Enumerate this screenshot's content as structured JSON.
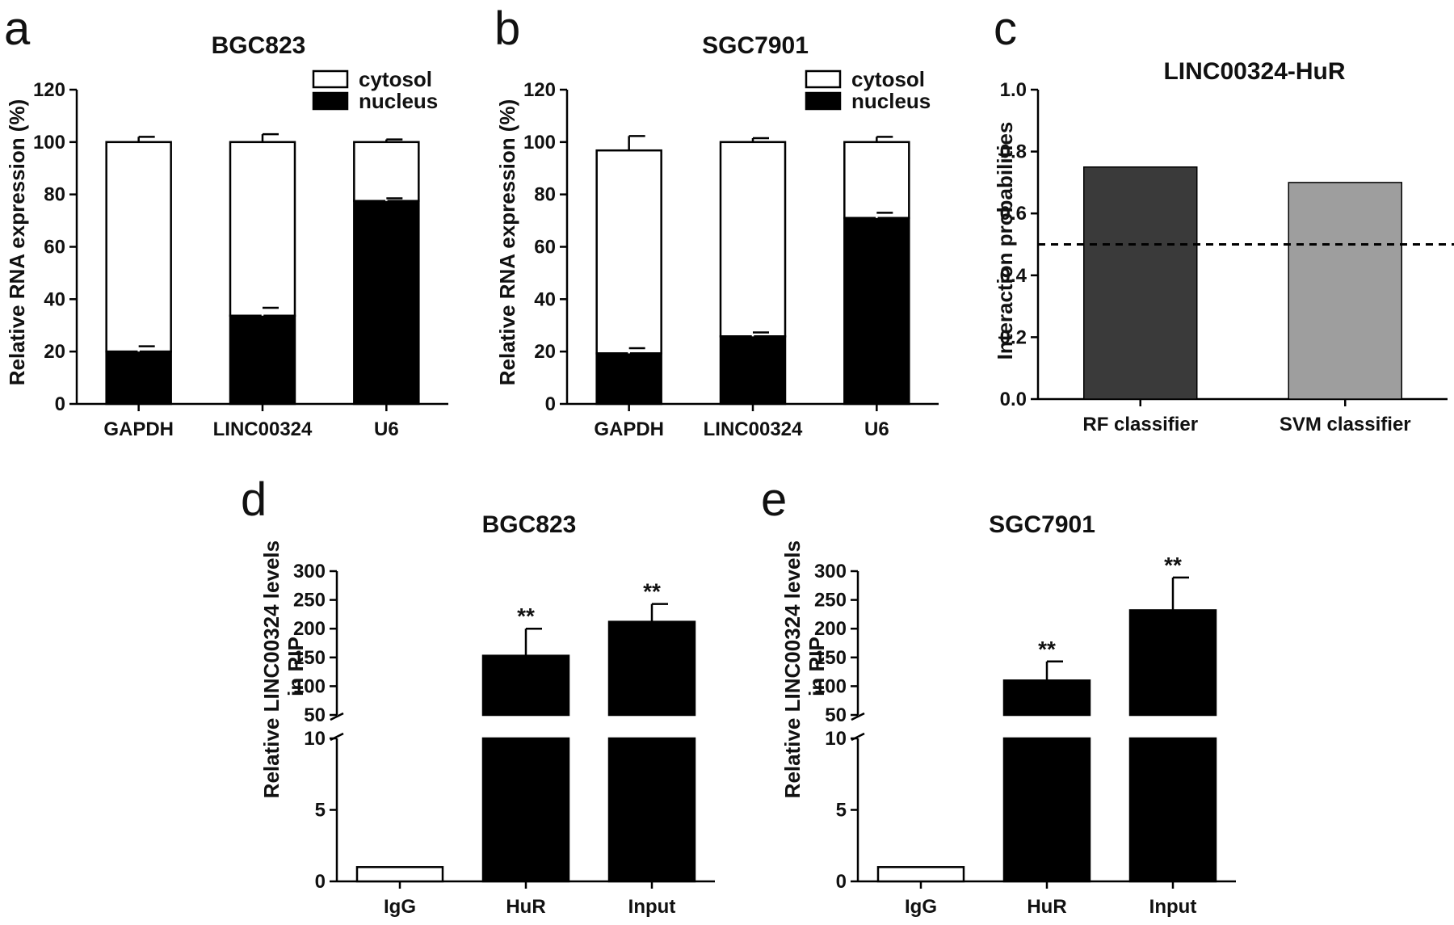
{
  "chart_data": [
    {
      "panel": "a",
      "type": "bar",
      "stacked": true,
      "title": "BGC823",
      "ylabel": "Relative RNA expression (%)",
      "xlabel": "",
      "categories": [
        "GAPDH",
        "LINC00324",
        "U6"
      ],
      "ylim": [
        0,
        120
      ],
      "yticks": [
        0,
        20,
        40,
        60,
        80,
        100,
        120
      ],
      "series": [
        {
          "name": "nucleus",
          "values": [
            20,
            33.7,
            77.5
          ],
          "errors": [
            2,
            3,
            1
          ],
          "color": "#000000"
        },
        {
          "name": "cytosol",
          "values": [
            80,
            66.3,
            22.5
          ],
          "errors": [
            2,
            3,
            1
          ],
          "color": "#ffffff"
        }
      ],
      "legend_position": "top-right",
      "grid": false
    },
    {
      "panel": "b",
      "type": "bar",
      "stacked": true,
      "title": "SGC7901",
      "ylabel": "Relative RNA expression (%)",
      "xlabel": "",
      "categories": [
        "GAPDH",
        "LINC00324",
        "U6"
      ],
      "ylim": [
        0,
        120
      ],
      "yticks": [
        0,
        20,
        40,
        60,
        80,
        100,
        120
      ],
      "series": [
        {
          "name": "nucleus",
          "values": [
            19.3,
            25.8,
            71
          ],
          "errors": [
            2,
            1.5,
            2
          ],
          "color": "#000000"
        },
        {
          "name": "cytosol",
          "values": [
            77.5,
            74.2,
            29
          ],
          "errors": [
            5.5,
            1.5,
            2
          ],
          "color": "#ffffff"
        }
      ],
      "legend_position": "top-right",
      "grid": false
    },
    {
      "panel": "c",
      "type": "bar",
      "title": "LINC00324-HuR",
      "ylabel": "Interaction probabilities",
      "xlabel": "",
      "categories": [
        "RF classifier",
        "SVM classifier"
      ],
      "values": [
        0.75,
        0.7
      ],
      "colors": [
        "#3a3a3a",
        "#9e9e9e"
      ],
      "ylim": [
        0,
        1.0
      ],
      "yticks": [
        "0.0",
        "0.2",
        "0.4",
        "0.6",
        "0.8",
        "1.0"
      ],
      "threshold": 0.5,
      "grid": false
    },
    {
      "panel": "d",
      "type": "bar",
      "broken_axis": true,
      "title": "BGC823",
      "ylabel": "Relative LINC00324 levels in RIP",
      "xlabel": "",
      "categories": [
        "IgG",
        "HuR",
        "Input"
      ],
      "values": [
        1,
        153,
        212
      ],
      "errors": [
        0,
        47,
        31
      ],
      "colors": [
        "#ffffff",
        "#000000",
        "#000000"
      ],
      "significance": [
        "",
        "**",
        "**"
      ],
      "lower_ylim": [
        0,
        10
      ],
      "lower_yticks": [
        0,
        5,
        10
      ],
      "upper_ylim": [
        50,
        300
      ],
      "upper_yticks": [
        50,
        100,
        150,
        200,
        250,
        300
      ],
      "grid": false
    },
    {
      "panel": "e",
      "type": "bar",
      "broken_axis": true,
      "title": "SGC7901",
      "ylabel": "Relative LINC00324 levels in RIP",
      "xlabel": "",
      "categories": [
        "IgG",
        "HuR",
        "Input"
      ],
      "values": [
        1,
        110,
        232
      ],
      "errors": [
        0,
        33,
        57
      ],
      "colors": [
        "#ffffff",
        "#000000",
        "#000000"
      ],
      "significance": [
        "",
        "**",
        "**"
      ],
      "lower_ylim": [
        0,
        10
      ],
      "lower_yticks": [
        0,
        5,
        10
      ],
      "upper_ylim": [
        50,
        300
      ],
      "upper_yticks": [
        50,
        100,
        150,
        200,
        250,
        300
      ],
      "grid": false
    }
  ]
}
